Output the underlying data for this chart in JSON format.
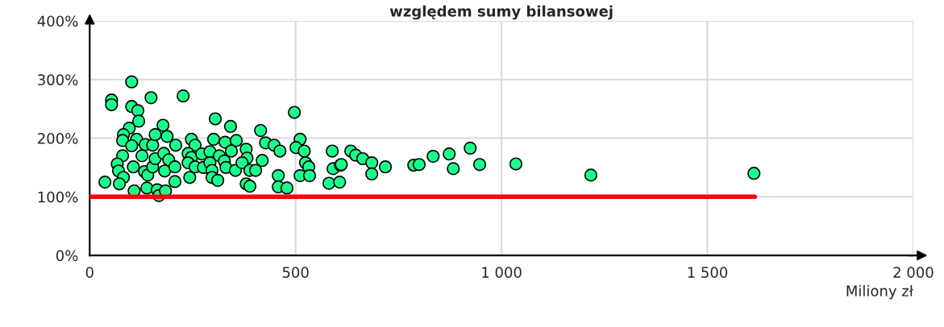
{
  "chart_data": {
    "type": "scatter",
    "title": "względem sumy bilansowej",
    "xlabel": "Miliony zł",
    "xlim": [
      0,
      2000
    ],
    "ylim": [
      0,
      400
    ],
    "xticks": [
      0,
      500,
      {
        "value": 1000,
        "label": "1 000"
      },
      {
        "value": 1500,
        "label": "1 500"
      },
      {
        "value": 2000,
        "label": "2 000"
      }
    ],
    "yticks": [
      {
        "value": 0,
        "label": "0%"
      },
      {
        "value": 100,
        "label": "100%"
      },
      {
        "value": 200,
        "label": "200%"
      },
      {
        "value": 300,
        "label": "300%"
      },
      {
        "value": 400,
        "label": "400%"
      }
    ],
    "grid": true,
    "marker": "circle",
    "legend": false,
    "series": [
      {
        "color": "#1aff8c",
        "x": [
          37,
          53,
          53,
          102,
          102,
          117,
          149,
          227,
          119,
          96,
          82,
          80,
          114,
          102,
          135,
          153,
          178,
          159,
          188,
          209,
          80,
          67,
          70,
          82,
          72,
          106,
          127,
          133,
          141,
          139,
          164,
          168,
          184,
          108,
          153,
          159,
          180,
          192,
          182,
          207,
          207,
          243,
          247,
          256,
          239,
          247,
          239,
          256,
          272,
          276,
          292,
          301,
          305,
          329,
          342,
          356,
          344,
          315,
          327,
          292,
          297,
          297,
          311,
          331,
          354,
          380,
          382,
          370,
          389,
          403,
          419,
          415,
          427,
          448,
          462,
          380,
          389,
          458,
          458,
          479,
          497,
          511,
          501,
          521,
          524,
          532,
          511,
          534,
          581,
          607,
          589,
          591,
          609,
          611,
          634,
          646,
          663,
          685,
          685,
          718,
          787,
          800,
          834,
          873,
          883,
          924,
          947,
          1035,
          1217,
          1613
        ],
        "values": [
          125,
          265,
          257,
          296,
          254,
          247,
          269,
          272,
          229,
          217,
          206,
          196,
          198,
          187,
          189,
          188,
          222,
          206,
          203,
          188,
          170,
          156,
          144,
          133,
          122,
          151,
          170,
          143,
          137,
          115,
          112,
          102,
          110,
          110,
          151,
          165,
          174,
          163,
          144,
          151,
          126,
          133,
          198,
          188,
          174,
          167,
          158,
          151,
          173,
          150,
          177,
          198,
          233,
          193,
          220,
          196,
          178,
          170,
          161,
          158,
          145,
          133,
          128,
          150,
          145,
          181,
          166,
          158,
          145,
          145,
          162,
          213,
          192,
          188,
          178,
          122,
          118,
          136,
          117,
          115,
          244,
          198,
          184,
          178,
          158,
          151,
          136,
          136,
          123,
          125,
          178,
          148,
          154,
          155,
          178,
          171,
          165,
          158,
          139,
          151,
          154,
          155,
          169,
          173,
          148,
          183,
          155,
          156,
          137,
          140
        ]
      },
      {
        "type": "line",
        "color": "#ff0000",
        "marker": "none",
        "x": [
          0,
          1615
        ],
        "values": [
          100,
          100
        ]
      }
    ]
  }
}
